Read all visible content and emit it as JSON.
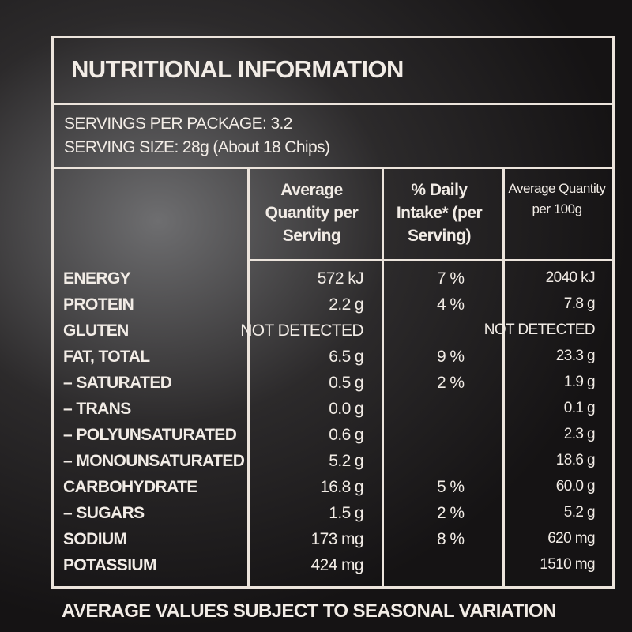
{
  "label": {
    "title": "NUTRITIONAL INFORMATION",
    "servings_per_package": "SERVINGS PER PACKAGE: 3.2",
    "serving_size": "SERVING SIZE: 28g (About 18 Chips)",
    "headers": [
      "Average Quantity per Serving",
      "% Daily Intake* (per Serving)",
      "Average Quantity per 100g"
    ],
    "rows": [
      [
        "ENERGY",
        "572 kJ",
        "7 %",
        "2040 kJ"
      ],
      [
        "PROTEIN",
        "2.2 g",
        "4 %",
        "7.8 g"
      ],
      [
        "GLUTEN",
        "NOT DETECTED",
        null,
        "NOT DETECTED"
      ],
      [
        "FAT, TOTAL",
        "6.5 g",
        "9 %",
        "23.3 g"
      ],
      [
        "– SATURATED",
        "0.5 g",
        "2 %",
        "1.9 g"
      ],
      [
        "– TRANS",
        "0.0 g",
        null,
        "0.1 g"
      ],
      [
        "– POLYUNSATURATED",
        "0.6 g",
        null,
        "2.3 g"
      ],
      [
        "– MONOUNSATURATED",
        "5.2 g",
        null,
        "18.6 g"
      ],
      [
        "CARBOHYDRATE",
        "16.8 g",
        "5 %",
        "60.0 g"
      ],
      [
        "– SUGARS",
        "1.5 g",
        "2 %",
        "5.2 g"
      ],
      [
        "SODIUM",
        "173 mg",
        "8 %",
        "620 mg"
      ],
      [
        "POTASSIUM",
        "424 mg",
        null,
        "1510 mg"
      ]
    ],
    "footer": "AVERAGE VALUES SUBJECT TO SEASONAL VARIATION"
  }
}
